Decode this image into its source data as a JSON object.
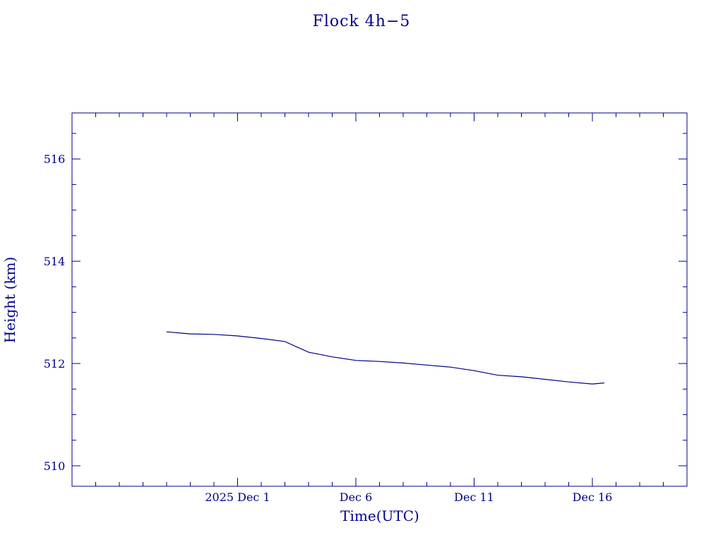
{
  "chart_data": {
    "type": "line",
    "title": "Flock 4h−5",
    "xlabel": "Time(UTC)",
    "ylabel": "Height (km)",
    "x_tick_labels": [
      {
        "label": "2025 Dec  1",
        "date": "2025-12-01"
      },
      {
        "label": "Dec  6",
        "date": "2025-12-06"
      },
      {
        "label": "Dec 11",
        "date": "2025-12-11"
      },
      {
        "label": "Dec 16",
        "date": "2025-12-16"
      }
    ],
    "xlim": [
      "2025-11-24",
      "2025-12-20"
    ],
    "ylim": [
      509.6,
      516.9
    ],
    "y_ticks": [
      510,
      512,
      514,
      516
    ],
    "y_tick_labels": [
      "510",
      "512",
      "514",
      "516"
    ],
    "series": [
      {
        "x": [
          "2025-11-28",
          "2025-11-29",
          "2025-11-30",
          "2025-12-01",
          "2025-12-02",
          "2025-12-03",
          "2025-12-04",
          "2025-12-05",
          "2025-12-06",
          "2025-12-07",
          "2025-12-08",
          "2025-12-09",
          "2025-12-10",
          "2025-12-11",
          "2025-12-12",
          "2025-12-13",
          "2025-12-14",
          "2025-12-15",
          "2025-12-16",
          "2025-12-16T12:00"
        ],
        "y": [
          512.62,
          512.58,
          512.57,
          512.54,
          512.49,
          512.43,
          512.22,
          512.13,
          512.06,
          512.04,
          512.01,
          511.97,
          511.93,
          511.86,
          511.77,
          511.74,
          511.69,
          511.64,
          511.6,
          511.62
        ]
      }
    ]
  }
}
